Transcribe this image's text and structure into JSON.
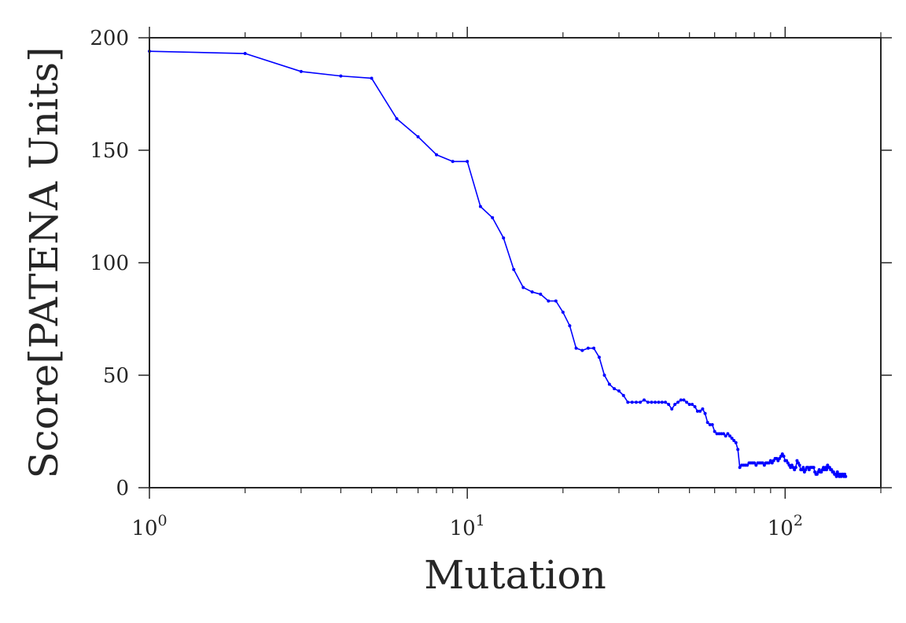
{
  "chart_data": {
    "type": "line",
    "xlabel": "Mutation",
    "ylabel": "Score[PATENA Units]",
    "xscale": "log",
    "xlim": [
      1,
      200
    ],
    "ylim": [
      0,
      200
    ],
    "grid": false,
    "line_color": "#0000ff",
    "axis_color": "#262626",
    "x_ticks": [
      {
        "base": "10",
        "exp": "0",
        "value": 1
      },
      {
        "base": "10",
        "exp": "1",
        "value": 10
      },
      {
        "base": "10",
        "exp": "2",
        "value": 100
      }
    ],
    "y_ticks": [
      {
        "label": "0",
        "value": 0
      },
      {
        "label": "50",
        "value": 50
      },
      {
        "label": "100",
        "value": 100
      },
      {
        "label": "150",
        "value": 150
      },
      {
        "label": "200",
        "value": 200
      }
    ],
    "series": [
      {
        "x": [
          1,
          2,
          3,
          4,
          5,
          6,
          7,
          8,
          9,
          10,
          11,
          12,
          13,
          14,
          15,
          16,
          17,
          18,
          19,
          20,
          21,
          22,
          23,
          24,
          25,
          26,
          27,
          28,
          29,
          30,
          31,
          32,
          33,
          34,
          35,
          36,
          37,
          38,
          39,
          40,
          41,
          42,
          43,
          44,
          45,
          46,
          47,
          48,
          49,
          50,
          51,
          52,
          53,
          54,
          55,
          56,
          57,
          58,
          59,
          60,
          61,
          62,
          63,
          64,
          65,
          66,
          67,
          68,
          69,
          70,
          71,
          72,
          73,
          74,
          75,
          76,
          77,
          78,
          79,
          80,
          81,
          82,
          83,
          84,
          85,
          86,
          87,
          88,
          89,
          90,
          91,
          92,
          93,
          94,
          95,
          96,
          97,
          98,
          99,
          100,
          101,
          102,
          103,
          104,
          105,
          106,
          107,
          108,
          109,
          110,
          111,
          112,
          113,
          114,
          115,
          116,
          117,
          118,
          119,
          120,
          121,
          122,
          123,
          124,
          125,
          126,
          127,
          128,
          129,
          130,
          131,
          132,
          133,
          134,
          135,
          136,
          137,
          138,
          139,
          140,
          141,
          142,
          143,
          144,
          145,
          146,
          147,
          148,
          149,
          150,
          151,
          152,
          153,
          154,
          155
        ],
        "y": [
          194,
          193,
          185,
          183,
          182,
          164,
          156,
          148,
          145,
          145,
          125,
          120,
          111,
          97,
          89,
          87,
          86,
          83,
          83,
          78,
          72,
          62,
          61,
          62,
          62,
          58,
          50,
          46,
          44,
          43,
          41,
          38,
          38,
          38,
          38,
          39,
          38,
          38,
          38,
          38,
          38,
          38,
          37,
          35,
          37,
          38,
          39,
          39,
          38,
          37,
          37,
          36,
          34,
          34,
          35,
          33,
          29,
          28,
          28,
          25,
          24,
          24,
          24,
          24,
          23,
          24,
          23,
          22,
          21,
          20,
          17,
          9,
          10,
          10,
          10,
          10,
          11,
          11,
          11,
          11,
          10,
          11,
          11,
          11,
          11,
          10,
          11,
          11,
          11,
          12,
          11,
          12,
          13,
          13,
          12,
          13,
          14,
          15,
          14,
          12,
          12,
          11,
          10,
          9,
          10,
          9,
          8,
          9,
          12,
          11,
          10,
          8,
          8,
          9,
          7,
          8,
          9,
          9,
          8,
          9,
          9,
          9,
          9,
          7,
          6,
          6,
          7,
          8,
          7,
          7,
          8,
          9,
          8,
          9,
          8,
          10,
          9,
          9,
          8,
          8,
          7,
          7,
          6,
          6,
          5,
          7,
          6,
          5,
          6,
          5,
          6,
          6,
          5,
          6,
          5
        ]
      }
    ]
  }
}
